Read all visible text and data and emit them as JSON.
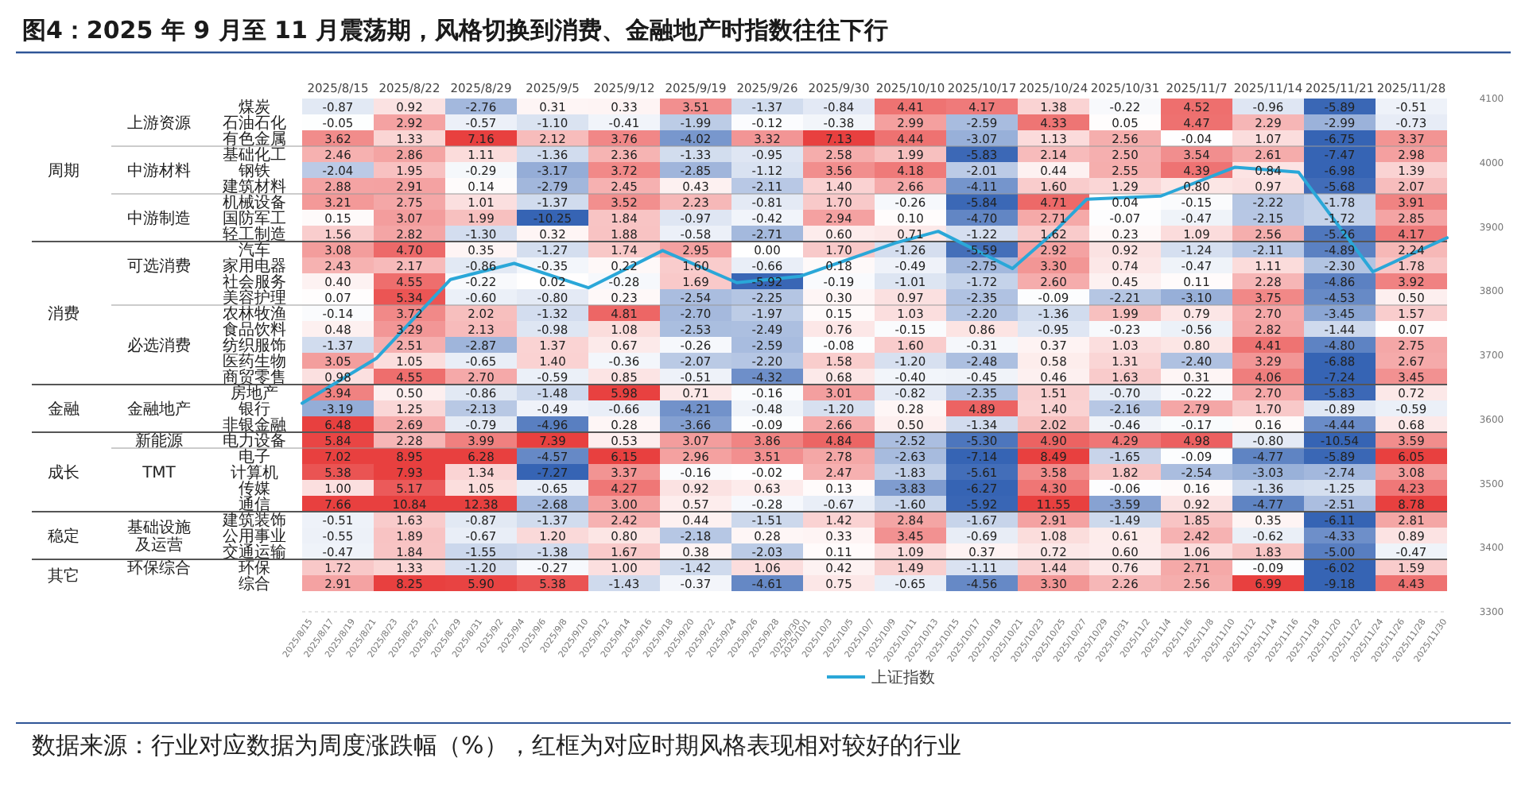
{
  "chart_data": [
    {
      "type": "heatmap",
      "data_labels": true,
      "title": "图4：2025 年 9 月至 11 月震荡期，风格切换到消费、金融地产时指数往往下行",
      "categories": [
        "2025/8/15",
        "2025/8/22",
        "2025/8/29",
        "2025/9/5",
        "2025/9/12",
        "2025/9/19",
        "2025/9/26",
        "2025/9/30",
        "2025/10/10",
        "2025/10/17",
        "2025/10/24",
        "2025/10/31",
        "2025/11/7",
        "2025/11/14",
        "2025/11/21",
        "2025/11/28"
      ],
      "y_categories": [
        "煤炭",
        "石油石化",
        "有色金属",
        "基础化工",
        "钢铁",
        "建筑材料",
        "机械设备",
        "国防军工",
        "轻工制造",
        "汽车",
        "家用电器",
        "社会服务",
        "美容护理",
        "农林牧渔",
        "食品饮料",
        "纺织服饰",
        "医药生物",
        "商贸零售",
        "房地产",
        "银行",
        "非银金融",
        "电力设备",
        "电子",
        "计算机",
        "传媒",
        "通信",
        "建筑装饰",
        "公用事业",
        "交通运输",
        "环保",
        "综合"
      ],
      "y2_categories": [
        null,
        "上游资源",
        null,
        null,
        "中游材料",
        null,
        null,
        "中游制造",
        null,
        null,
        "可选消费",
        null,
        null,
        null,
        null,
        "必选消费",
        null,
        null,
        null,
        "金融地产",
        null,
        "新能源",
        null,
        "TMT",
        null,
        null,
        null,
        "基础设施及运营",
        null,
        "环保综合",
        null
      ],
      "cell_labels": [
        [
          "-0.87",
          "0.92",
          "-2.76",
          "0.31",
          "0.33",
          "3.51",
          "-1.37",
          "-0.84",
          "4.41",
          "4.17",
          "1.38",
          "-0.22",
          "4.52",
          "-0.96",
          "-5.89",
          "-0.51"
        ],
        [
          "-0.05",
          "2.92",
          "-0.57",
          "-1.10",
          "-0.41",
          "-1.99",
          "-0.12",
          "-0.38",
          "2.99",
          "-2.59",
          "4.33",
          "0.05",
          "4.47",
          "2.29",
          "-2.99",
          "-0.73"
        ],
        [
          "3.62",
          "1.33",
          "7.16",
          "2.12",
          "3.76",
          "-4.02",
          "3.32",
          "7.13",
          "4.44",
          "-3.07",
          "1.13",
          "2.56",
          "-0.04",
          "1.07",
          "-6.75",
          "3.37"
        ],
        [
          "2.46",
          "2.86",
          "1.11",
          "-1.36",
          "2.36",
          "-1.33",
          "-0.95",
          "2.58",
          "1.99",
          "-5.83",
          "2.14",
          "2.50",
          "3.54",
          "2.61",
          "-7.47",
          "2.98"
        ],
        [
          "-2.04",
          "1.95",
          "-0.29",
          "-3.17",
          "3.72",
          "-2.85",
          "-1.12",
          "3.56",
          "4.18",
          "-2.01",
          "0.44",
          "2.55",
          "4.39",
          "0.84",
          "-6.98",
          "1.39"
        ],
        [
          "2.88",
          "2.91",
          "0.14",
          "-2.79",
          "2.45",
          "0.43",
          "-2.11",
          "1.40",
          "2.66",
          "-4.11",
          "1.60",
          "1.29",
          "0.80",
          "0.97",
          "-5.68",
          "2.07"
        ],
        [
          "3.21",
          "2.75",
          "1.01",
          "-1.37",
          "3.52",
          "2.23",
          "-0.81",
          "1.70",
          "-0.26",
          "-5.84",
          "4.71",
          "0.04",
          "-0.15",
          "-2.22",
          "-1.78",
          "3.91"
        ],
        [
          "0.15",
          "3.07",
          "1.99",
          "-10.25",
          "1.84",
          "-0.97",
          "-0.42",
          "2.94",
          "0.10",
          "-4.70",
          "2.71",
          "-0.07",
          "-0.47",
          "-2.15",
          "-1.72",
          "2.85"
        ],
        [
          "1.56",
          "2.82",
          "-1.30",
          "0.32",
          "1.88",
          "-0.58",
          "-2.71",
          "0.60",
          "0.71",
          "-1.22",
          "1.62",
          "0.23",
          "1.09",
          "2.56",
          "-5.26",
          "4.17"
        ],
        [
          "3.08",
          "4.70",
          "0.35",
          "-1.27",
          "1.74",
          "2.95",
          "0.00",
          "1.70",
          "-1.26",
          "-5.59",
          "2.92",
          "0.92",
          "-1.24",
          "-2.11",
          "-4.89",
          "2.24"
        ],
        [
          "2.43",
          "2.17",
          "-0.86",
          "-0.35",
          "0.22",
          "1.60",
          "-0.66",
          "0.18",
          "-0.49",
          "-2.75",
          "3.30",
          "0.74",
          "-0.47",
          "1.11",
          "-2.30",
          "1.78"
        ],
        [
          "0.40",
          "4.55",
          "-0.22",
          "0.02",
          "-0.28",
          "1.69",
          "-5.92",
          "-0.19",
          "-1.01",
          "-1.72",
          "2.60",
          "0.45",
          "0.11",
          "2.28",
          "-4.86",
          "3.92"
        ],
        [
          "0.07",
          "5.34",
          "-0.60",
          "-0.80",
          "0.23",
          "-2.54",
          "-2.25",
          "0.30",
          "0.97",
          "-2.35",
          "-0.09",
          "-2.21",
          "-3.10",
          "3.75",
          "-4.53",
          "0.50"
        ],
        [
          "-0.14",
          "3.72",
          "2.02",
          "-1.32",
          "4.81",
          "-2.70",
          "-1.97",
          "0.15",
          "1.03",
          "-2.20",
          "-1.36",
          "1.99",
          "0.79",
          "2.70",
          "-3.45",
          "1.57"
        ],
        [
          "0.48",
          "3.29",
          "2.13",
          "-0.98",
          "1.08",
          "-2.53",
          "-2.49",
          "0.76",
          "-0.15",
          "0.86",
          "-0.95",
          "-0.23",
          "-0.56",
          "2.82",
          "-1.44",
          "0.07"
        ],
        [
          "-1.37",
          "2.51",
          "-2.87",
          "1.37",
          "0.67",
          "-0.26",
          "-2.59",
          "-0.08",
          "1.60",
          "-0.31",
          "0.37",
          "1.03",
          "0.80",
          "4.41",
          "-4.80",
          "2.75"
        ],
        [
          "3.05",
          "1.05",
          "-0.65",
          "1.40",
          "-0.36",
          "-2.07",
          "-2.20",
          "1.58",
          "-1.20",
          "-2.48",
          "0.58",
          "1.31",
          "-2.40",
          "3.29",
          "-6.88",
          "2.67"
        ],
        [
          "0.98",
          "4.55",
          "2.70",
          "-0.59",
          "0.85",
          "-0.51",
          "-4.32",
          "0.68",
          "-0.40",
          "-0.45",
          "0.46",
          "1.63",
          "0.31",
          "4.06",
          "-7.24",
          "3.45"
        ],
        [
          "3.94",
          "0.50",
          "-0.86",
          "-1.48",
          "5.98",
          "0.71",
          "-0.16",
          "3.01",
          "-0.82",
          "-2.35",
          "1.51",
          "-0.70",
          "-0.22",
          "2.70",
          "-5.83",
          "0.72"
        ],
        [
          "-3.19",
          "1.25",
          "-2.13",
          "-0.49",
          "-0.66",
          "-4.21",
          "-0.48",
          "-1.20",
          "0.28",
          "4.89",
          "1.40",
          "-2.16",
          "2.79",
          "1.70",
          "-0.89",
          "-0.59"
        ],
        [
          "6.48",
          "2.69",
          "-0.79",
          "-4.96",
          "0.28",
          "-3.66",
          "-0.09",
          "2.66",
          "0.50",
          "-1.34",
          "2.02",
          "-0.46",
          "-0.17",
          "0.16",
          "-4.44",
          "0.68"
        ],
        [
          "5.84",
          "2.28",
          "3.99",
          "7.39",
          "0.53",
          "3.07",
          "3.86",
          "4.84",
          "-2.52",
          "-5.30",
          "4.90",
          "4.29",
          "4.98",
          "-0.80",
          "-10.54",
          "3.59"
        ],
        [
          "7.02",
          "8.95",
          "6.28",
          "-4.57",
          "6.15",
          "2.96",
          "3.51",
          "2.78",
          "-2.63",
          "-7.14",
          "8.49",
          "-1.65",
          "-0.09",
          "-4.77",
          "-5.89",
          "6.05"
        ],
        [
          "5.38",
          "7.93",
          "1.34",
          "-7.27",
          "3.37",
          "-0.16",
          "-0.02",
          "2.47",
          "-1.83",
          "-5.61",
          "3.58",
          "1.82",
          "-2.54",
          "-3.03",
          "-2.74",
          "3.08"
        ],
        [
          "1.00",
          "5.17",
          "1.05",
          "-0.65",
          "4.27",
          "0.92",
          "0.63",
          "0.13",
          "-3.83",
          "-6.27",
          "4.30",
          "-0.06",
          "0.16",
          "-1.36",
          "-1.25",
          "4.23"
        ],
        [
          "7.66",
          "10.84",
          "12.38",
          "-2.68",
          "3.00",
          "0.57",
          "-0.28",
          "-0.67",
          "-1.60",
          "-5.92",
          "11.55",
          "-3.59",
          "0.92",
          "-4.77",
          "-2.51",
          "8.78"
        ],
        [
          "-0.51",
          "1.63",
          "-0.87",
          "-1.37",
          "2.42",
          "0.44",
          "-1.51",
          "1.42",
          "2.84",
          "-1.67",
          "2.91",
          "-1.49",
          "1.85",
          "0.35",
          "-6.11",
          "2.81"
        ],
        [
          "-0.55",
          "1.89",
          "-0.67",
          "1.20",
          "0.80",
          "-2.18",
          "0.28",
          "0.33",
          "3.45",
          "-0.69",
          "1.08",
          "0.61",
          "2.42",
          "-0.62",
          "-4.33",
          "0.89"
        ],
        [
          "-0.47",
          "1.84",
          "-1.55",
          "-1.38",
          "1.67",
          "0.38",
          "-2.03",
          "0.11",
          "1.09",
          "0.37",
          "0.72",
          "0.60",
          "1.06",
          "1.83",
          "-5.00",
          "-0.47"
        ],
        [
          "1.72",
          "1.33",
          "-1.20",
          "-0.27",
          "1.00",
          "-1.42",
          "1.06",
          "0.42",
          "1.49",
          "-1.11",
          "1.44",
          "0.76",
          "2.71",
          "-0.09",
          "-6.02",
          "1.59"
        ],
        [
          "2.91",
          "8.25",
          "5.90",
          "5.38",
          "-1.43",
          "-0.37",
          "-4.61",
          "0.75",
          "-0.65",
          "-4.56",
          "3.30",
          "2.26",
          "2.56",
          "6.99",
          "-9.18",
          "4.43"
        ]
      ],
      "cells": [
        [
          -0.87,
          0.92,
          -2.76,
          0.31,
          0.33,
          3.51,
          -1.37,
          -0.84,
          4.41,
          4.17,
          1.38,
          -0.22,
          4.52,
          -0.96,
          -5.89,
          -0.51
        ],
        [
          -0.05,
          2.92,
          -0.57,
          -1.1,
          -0.41,
          -1.99,
          -0.12,
          -0.38,
          2.99,
          -2.59,
          4.33,
          0.05,
          4.47,
          2.29,
          -2.99,
          -0.73
        ],
        [
          3.62,
          1.33,
          7.16,
          2.12,
          3.76,
          -4.02,
          3.32,
          7.13,
          4.44,
          -3.07,
          1.13,
          2.56,
          -0.04,
          1.07,
          -6.75,
          3.37
        ],
        [
          2.46,
          2.86,
          1.11,
          -1.36,
          2.36,
          -1.33,
          -0.95,
          2.58,
          1.99,
          -5.83,
          2.14,
          2.5,
          3.54,
          2.61,
          -7.47,
          2.98
        ],
        [
          -2.04,
          1.95,
          -0.29,
          -3.17,
          3.72,
          -2.85,
          -1.12,
          3.56,
          4.18,
          -2.01,
          0.44,
          2.55,
          4.39,
          0.84,
          -6.98,
          1.39
        ],
        [
          2.88,
          2.91,
          0.14,
          -2.79,
          2.45,
          0.43,
          -2.11,
          1.4,
          2.66,
          -4.11,
          1.6,
          1.29,
          0.8,
          0.97,
          -5.68,
          2.07
        ],
        [
          3.21,
          2.75,
          1.01,
          -1.37,
          3.52,
          2.23,
          -0.81,
          1.7,
          -0.26,
          -5.84,
          4.71,
          0.04,
          -0.15,
          -2.22,
          -1.78,
          3.91
        ],
        [
          0.15,
          3.07,
          1.99,
          -10.25,
          1.84,
          -0.97,
          -0.42,
          2.94,
          0.1,
          -4.7,
          2.71,
          -0.07,
          -0.47,
          -2.15,
          -1.72,
          2.85
        ],
        [
          1.56,
          2.82,
          -1.3,
          0.32,
          1.88,
          -0.58,
          -2.71,
          0.6,
          0.71,
          -1.22,
          1.62,
          0.23,
          1.09,
          2.56,
          -5.26,
          4.17
        ],
        [
          3.08,
          4.7,
          0.35,
          -1.27,
          1.74,
          2.95,
          0.0,
          1.7,
          -1.26,
          -5.59,
          2.92,
          0.92,
          -1.24,
          -2.11,
          -4.89,
          2.24
        ],
        [
          2.43,
          2.17,
          -0.86,
          -0.35,
          0.22,
          1.6,
          -0.66,
          0.18,
          -0.49,
          -2.75,
          3.3,
          0.74,
          -0.47,
          1.11,
          -2.3,
          1.78
        ],
        [
          0.4,
          4.55,
          -0.22,
          0.02,
          -0.28,
          1.69,
          -5.92,
          -0.19,
          -1.01,
          -1.72,
          2.6,
          0.45,
          0.11,
          2.28,
          -4.86,
          3.92
        ],
        [
          0.07,
          5.34,
          -0.6,
          -0.8,
          0.23,
          -2.54,
          -2.25,
          0.3,
          0.97,
          -2.35,
          -0.09,
          -2.21,
          -3.1,
          3.75,
          -4.53,
          0.5
        ],
        [
          -0.14,
          3.72,
          2.02,
          -1.32,
          4.81,
          -2.7,
          -1.97,
          0.15,
          1.03,
          -2.2,
          -1.36,
          1.99,
          0.79,
          2.7,
          -3.45,
          1.57
        ],
        [
          0.48,
          3.29,
          2.13,
          -0.98,
          1.08,
          -2.53,
          -2.49,
          0.76,
          -0.15,
          0.86,
          -0.95,
          -0.23,
          -0.56,
          2.82,
          -1.44,
          0.07
        ],
        [
          -1.37,
          2.51,
          -2.87,
          1.37,
          0.67,
          -0.26,
          -2.59,
          -0.08,
          1.6,
          -0.31,
          0.37,
          1.03,
          0.8,
          4.41,
          -4.8,
          2.75
        ],
        [
          3.05,
          1.05,
          -0.65,
          1.4,
          -0.36,
          -2.07,
          -2.2,
          1.58,
          -1.2,
          -2.48,
          0.58,
          1.31,
          -2.4,
          3.29,
          -6.88,
          2.67
        ],
        [
          0.98,
          4.55,
          2.7,
          -0.59,
          0.85,
          -0.51,
          -4.32,
          0.68,
          -0.4,
          -0.45,
          0.46,
          1.63,
          0.31,
          4.06,
          -7.24,
          3.45
        ],
        [
          3.94,
          0.5,
          -0.86,
          -1.48,
          5.98,
          0.71,
          -0.16,
          3.01,
          -0.82,
          -2.35,
          1.51,
          -0.7,
          -0.22,
          2.7,
          -5.83,
          0.72
        ],
        [
          -3.19,
          1.25,
          -2.13,
          -0.49,
          -0.66,
          -4.21,
          -0.48,
          -1.2,
          0.28,
          4.89,
          1.4,
          -2.16,
          2.79,
          1.7,
          -0.89,
          -0.59
        ],
        [
          6.48,
          2.69,
          -0.79,
          -4.96,
          0.28,
          -3.66,
          -0.09,
          2.66,
          0.5,
          -1.34,
          2.02,
          -0.46,
          -0.17,
          0.16,
          -4.44,
          0.68
        ],
        [
          5.84,
          2.28,
          3.99,
          7.39,
          0.53,
          3.07,
          3.86,
          4.84,
          -2.52,
          -5.3,
          4.9,
          4.29,
          4.98,
          -0.8,
          -10.54,
          3.59
        ],
        [
          7.02,
          8.95,
          6.28,
          -4.57,
          6.15,
          2.96,
          3.51,
          2.78,
          -2.63,
          -7.14,
          8.49,
          -1.65,
          -0.09,
          -4.77,
          -5.89,
          6.05
        ],
        [
          5.38,
          7.93,
          1.34,
          -7.27,
          3.37,
          -0.16,
          -0.02,
          2.47,
          -1.83,
          -5.61,
          3.58,
          1.82,
          -2.54,
          -3.03,
          -2.74,
          3.08
        ],
        [
          1.0,
          5.17,
          1.05,
          -0.65,
          4.27,
          0.92,
          0.63,
          0.13,
          -3.83,
          -6.27,
          4.3,
          -0.06,
          0.16,
          -1.36,
          -1.25,
          4.23
        ],
        [
          7.66,
          10.84,
          12.38,
          -2.68,
          3.0,
          0.57,
          -0.28,
          -0.67,
          -1.6,
          -5.92,
          11.55,
          -3.59,
          0.92,
          -4.77,
          -2.51,
          8.78
        ],
        [
          -0.51,
          1.63,
          -0.87,
          -1.37,
          2.42,
          0.44,
          -1.51,
          1.42,
          2.84,
          -1.67,
          2.91,
          -1.49,
          1.85,
          0.35,
          -6.11,
          2.81
        ],
        [
          -0.55,
          1.89,
          -0.67,
          1.2,
          0.8,
          -2.18,
          0.28,
          0.33,
          3.45,
          -0.69,
          1.08,
          0.61,
          2.42,
          -0.62,
          -4.33,
          0.89
        ],
        [
          -0.47,
          1.84,
          -1.55,
          -1.38,
          1.67,
          0.38,
          -2.03,
          0.11,
          1.09,
          0.37,
          0.72,
          0.6,
          1.06,
          1.83,
          -5.0,
          -0.47
        ],
        [
          1.72,
          1.33,
          -1.2,
          -0.27,
          1.0,
          -1.42,
          1.06,
          0.42,
          1.49,
          -1.11,
          1.44,
          0.76,
          2.71,
          -0.09,
          -6.02,
          1.59
        ],
        [
          2.91,
          8.25,
          5.9,
          5.38,
          -1.43,
          -0.37,
          -4.61,
          0.75,
          -0.65,
          -4.56,
          3.3,
          2.26,
          2.56,
          6.99,
          -9.18,
          4.43
        ]
      ],
      "annotations": [
        "周期",
        "消费",
        "金融",
        "成长",
        "稳定",
        "其它",
        "数据来源：行业对应数据为周度涨跌幅（%），红框为对应时期风格表现相对较好的行业"
      ]
    },
    {
      "type": "line",
      "series": [
        {
          "name": "上证指数",
          "color": "#2aa7d8",
          "x": [
            "2025-08-14",
            "2025-08-21",
            "2025-08-28",
            "2025-09-03",
            "2025-09-10",
            "2025-09-17",
            "2025-09-24",
            "2025-09-30",
            "2025-10-09",
            "2025-10-13",
            "2025-10-20",
            "2025-10-24",
            "2025-10-27",
            "2025-11-03",
            "2025-11-10",
            "2025-11-16",
            "2025-11-23",
            "2025-11-30"
          ],
          "values": [
            3625,
            3695,
            3818,
            3843,
            3805,
            3863,
            3813,
            3823,
            3875,
            3893,
            3835,
            3893,
            3943,
            3948,
            3993,
            3985,
            3830,
            3883
          ]
        }
      ],
      "xlim": [
        "2025-08-14",
        "2025-11-30"
      ],
      "xticks": [
        {
          "value": "2025-08-15",
          "label": "2025/8/15"
        },
        {
          "value": "2025-08-17",
          "label": "2025/8/17"
        },
        {
          "value": "2025-08-19",
          "label": "2025/8/19"
        },
        {
          "value": "2025-08-21",
          "label": "2025/8/21"
        },
        {
          "value": "2025-08-23",
          "label": "2025/8/23"
        },
        {
          "value": "2025-08-25",
          "label": "2025/8/25"
        },
        {
          "value": "2025-08-27",
          "label": "2025/8/27"
        },
        {
          "value": "2025-08-29",
          "label": "2025/8/29"
        },
        {
          "value": "2025-08-31",
          "label": "2025/8/31"
        },
        {
          "value": "2025-09-02",
          "label": "2025/9/2"
        },
        {
          "value": "2025-09-04",
          "label": "2025/9/4"
        },
        {
          "value": "2025-09-06",
          "label": "2025/9/6"
        },
        {
          "value": "2025-09-08",
          "label": "2025/9/8"
        },
        {
          "value": "2025-09-10",
          "label": "2025/9/10"
        },
        {
          "value": "2025-09-12",
          "label": "2025/9/12"
        },
        {
          "value": "2025-09-14",
          "label": "2025/9/14"
        },
        {
          "value": "2025-09-16",
          "label": "2025/9/16"
        },
        {
          "value": "2025-09-18",
          "label": "2025/9/18"
        },
        {
          "value": "2025-09-20",
          "label": "2025/9/20"
        },
        {
          "value": "2025-09-22",
          "label": "2025/9/22"
        },
        {
          "value": "2025-09-24",
          "label": "2025/9/24"
        },
        {
          "value": "2025-09-26",
          "label": "2025/9/26"
        },
        {
          "value": "2025-09-28",
          "label": "2025/9/28"
        },
        {
          "value": "2025-09-30",
          "label": "2025/9/30"
        },
        {
          "value": "2025-10-01",
          "label": "2025/10/1"
        },
        {
          "value": "2025-10-03",
          "label": "2025/10/3"
        },
        {
          "value": "2025-10-05",
          "label": "2025/10/5"
        },
        {
          "value": "2025-10-07",
          "label": "2025/10/7"
        },
        {
          "value": "2025-10-09",
          "label": "2025/10/9"
        },
        {
          "value": "2025-10-11",
          "label": "2025/10/11"
        },
        {
          "value": "2025-10-13",
          "label": "2025/10/13"
        },
        {
          "value": "2025-10-15",
          "label": "2025/10/15"
        },
        {
          "value": "2025-10-17",
          "label": "2025/10/17"
        },
        {
          "value": "2025-10-19",
          "label": "2025/10/19"
        },
        {
          "value": "2025-10-21",
          "label": "2025/10/21"
        },
        {
          "value": "2025-10-23",
          "label": "2025/10/23"
        },
        {
          "value": "2025-10-25",
          "label": "2025/10/25"
        },
        {
          "value": "2025-10-27",
          "label": "2025/10/27"
        },
        {
          "value": "2025-10-29",
          "label": "2025/10/29"
        },
        {
          "value": "2025-10-31",
          "label": "2025/10/31"
        },
        {
          "value": "2025-11-02",
          "label": "2025/11/2"
        },
        {
          "value": "2025-11-04",
          "label": "2025/11/4"
        },
        {
          "value": "2025-11-06",
          "label": "2025/11/6"
        },
        {
          "value": "2025-11-08",
          "label": "2025/11/8"
        },
        {
          "value": "2025-11-10",
          "label": "2025/11/10"
        },
        {
          "value": "2025-11-12",
          "label": "2025/11/12"
        },
        {
          "value": "2025-11-14",
          "label": "2025/11/14"
        },
        {
          "value": "2025-11-16",
          "label": "2025/11/16"
        },
        {
          "value": "2025-11-18",
          "label": "2025/11/18"
        },
        {
          "value": "2025-11-20",
          "label": "2025/11/20"
        },
        {
          "value": "2025-11-22",
          "label": "2025/11/22"
        },
        {
          "value": "2025-11-24",
          "label": "2025/11/24"
        },
        {
          "value": "2025-11-26",
          "label": "2025/11/26"
        },
        {
          "value": "2025-11-28",
          "label": "2025/11/28"
        },
        {
          "value": "2025-11-30",
          "label": "2025/11/30"
        }
      ],
      "ylim": [
        3300,
        4100
      ],
      "yticks": [
        3300,
        3400,
        3500,
        3600,
        3700,
        3800,
        3900,
        4000,
        4100
      ],
      "legend": "bottom"
    }
  ]
}
